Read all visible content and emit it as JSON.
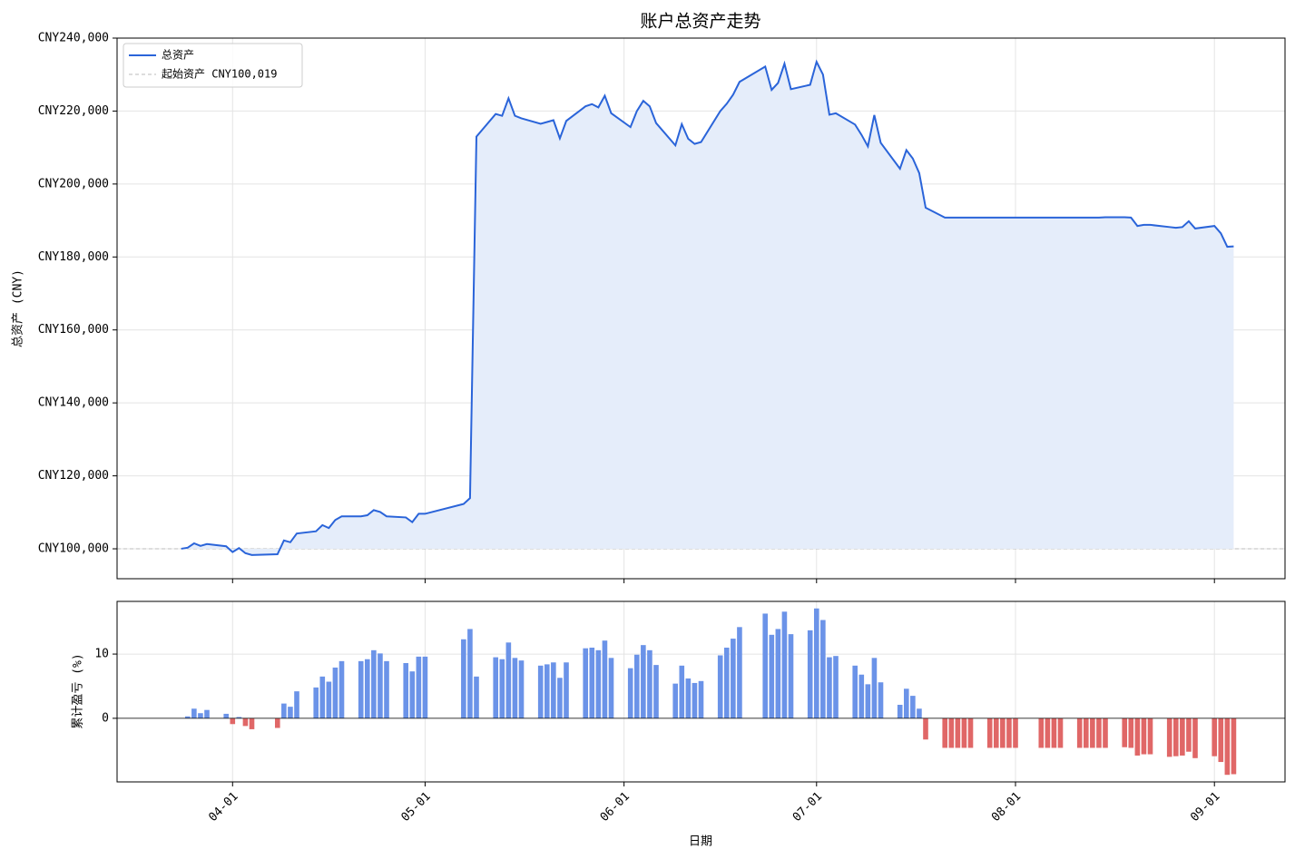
{
  "chart_data": [
    {
      "type": "line",
      "title": "账户总资产走势",
      "ylabel": "总资产 (CNY)",
      "x": [
        "03-24",
        "03-25",
        "03-26",
        "03-27",
        "03-28",
        "03-31",
        "04-01",
        "04-02",
        "04-03",
        "04-04",
        "04-08",
        "04-09",
        "04-10",
        "04-11",
        "04-14",
        "04-15",
        "04-16",
        "04-17",
        "04-18",
        "04-21",
        "04-22",
        "04-23",
        "04-24",
        "04-25",
        "04-28",
        "04-29",
        "04-30",
        "05-01",
        "05-07",
        "05-08",
        "05-09",
        "05-12",
        "05-13",
        "05-14",
        "05-15",
        "05-16",
        "05-19",
        "05-20",
        "05-21",
        "05-22",
        "05-23",
        "05-26",
        "05-27",
        "05-28",
        "05-29",
        "05-30",
        "06-02",
        "06-03",
        "06-04",
        "06-05",
        "06-06",
        "06-09",
        "06-10",
        "06-11",
        "06-12",
        "06-13",
        "06-16",
        "06-17",
        "06-18",
        "06-19",
        "06-23",
        "06-24",
        "06-25",
        "06-26",
        "06-27",
        "06-30",
        "07-01",
        "07-02",
        "07-03",
        "07-04",
        "07-07",
        "07-08",
        "07-09",
        "07-10",
        "07-11",
        "07-14",
        "07-15",
        "07-16",
        "07-17",
        "07-18",
        "07-21",
        "07-22",
        "07-23",
        "07-24",
        "07-25",
        "07-28",
        "07-29",
        "07-30",
        "07-31",
        "08-01",
        "08-05",
        "08-06",
        "08-07",
        "08-08",
        "08-11",
        "08-12",
        "08-13",
        "08-14",
        "08-15",
        "08-18",
        "08-19",
        "08-20",
        "08-21",
        "08-22",
        "08-25",
        "08-26",
        "08-27",
        "08-28",
        "08-29",
        "09-01",
        "09-02",
        "09-03",
        "09-04"
      ],
      "series": [
        {
          "name": "总资产",
          "color": "#2a64d9",
          "fill": "#e5edfa",
          "values": [
            100019,
            100300,
            101500,
            100800,
            101300,
            100700,
            99100,
            100200,
            98800,
            98300,
            98500,
            102300,
            101800,
            104200,
            104800,
            106500,
            105700,
            107900,
            108900,
            108900,
            109200,
            110600,
            110100,
            108900,
            108600,
            107300,
            109600,
            109600,
            112300,
            113900,
            213000,
            219200,
            218700,
            223500,
            218700,
            218000,
            216500,
            217000,
            217500,
            212500,
            217300,
            221300,
            221900,
            221000,
            224200,
            219400,
            215600,
            220000,
            222800,
            221300,
            216700,
            210600,
            216400,
            212400,
            211000,
            211500,
            220000,
            222000,
            224500,
            228000,
            232200,
            225800,
            227700,
            233000,
            226000,
            227200,
            233500,
            230000,
            219000,
            219400,
            216300,
            213500,
            210300,
            218900,
            211300,
            204200,
            209300,
            207000,
            203000,
            193500,
            190800,
            190800,
            190800,
            190800,
            190800,
            190800,
            190800,
            190800,
            190800,
            190800,
            190800,
            190800,
            190800,
            190800,
            190800,
            190800,
            190800,
            190800,
            190900,
            190900,
            190800,
            188500,
            188800,
            188800,
            188200,
            188000,
            188200,
            189800,
            187800,
            188500,
            186500,
            182800,
            182900
          ]
        }
      ],
      "reference": {
        "name": "起始资产 CNY100,019",
        "value": 100019,
        "color": "#bbbbbb"
      },
      "legend": "upper left",
      "xlim": [
        "03-14",
        "09-12"
      ],
      "xticks": [
        "04-01",
        "05-01",
        "06-01",
        "07-01",
        "08-01",
        "09-01"
      ],
      "ylim": [
        91800,
        240000
      ],
      "yticks": [
        {
          "value": 100000,
          "label": "CNY100,000"
        },
        {
          "value": 120000,
          "label": "CNY120,000"
        },
        {
          "value": 140000,
          "label": "CNY140,000"
        },
        {
          "value": 160000,
          "label": "CNY160,000"
        },
        {
          "value": 180000,
          "label": "CNY180,000"
        },
        {
          "value": 200000,
          "label": "CNY200,000"
        },
        {
          "value": 220000,
          "label": "CNY220,000"
        },
        {
          "value": 240000,
          "label": "CNY240,000"
        }
      ],
      "grid": true
    },
    {
      "type": "bar",
      "ylabel": "累计盈亏 (%)",
      "xlabel": "日期",
      "x": [
        "03-24",
        "03-25",
        "03-26",
        "03-27",
        "03-28",
        "03-31",
        "04-01",
        "04-02",
        "04-03",
        "04-04",
        "04-08",
        "04-09",
        "04-10",
        "04-11",
        "04-14",
        "04-15",
        "04-16",
        "04-17",
        "04-18",
        "04-21",
        "04-22",
        "04-23",
        "04-24",
        "04-25",
        "04-28",
        "04-29",
        "04-30",
        "05-01",
        "05-07",
        "05-08",
        "05-09",
        "05-12",
        "05-13",
        "05-14",
        "05-15",
        "05-16",
        "05-19",
        "05-20",
        "05-21",
        "05-22",
        "05-23",
        "05-26",
        "05-27",
        "05-28",
        "05-29",
        "05-30",
        "06-02",
        "06-03",
        "06-04",
        "06-05",
        "06-06",
        "06-09",
        "06-10",
        "06-11",
        "06-12",
        "06-13",
        "06-16",
        "06-17",
        "06-18",
        "06-19",
        "06-23",
        "06-24",
        "06-25",
        "06-26",
        "06-27",
        "06-30",
        "07-01",
        "07-02",
        "07-03",
        "07-04",
        "07-07",
        "07-08",
        "07-09",
        "07-10",
        "07-11",
        "07-14",
        "07-15",
        "07-16",
        "07-17",
        "07-18",
        "07-21",
        "07-22",
        "07-23",
        "07-24",
        "07-25",
        "07-28",
        "07-29",
        "07-30",
        "07-31",
        "08-01",
        "08-05",
        "08-06",
        "08-07",
        "08-08",
        "08-11",
        "08-12",
        "08-13",
        "08-14",
        "08-15",
        "08-18",
        "08-19",
        "08-20",
        "08-21",
        "08-22",
        "08-25",
        "08-26",
        "08-27",
        "08-28",
        "08-29",
        "09-01",
        "09-02",
        "09-03",
        "09-04"
      ],
      "values": [
        0,
        0.3,
        1.5,
        0.8,
        1.3,
        0.7,
        -0.9,
        0.2,
        -1.2,
        -1.7,
        -1.5,
        2.3,
        1.8,
        4.2,
        4.8,
        6.5,
        5.7,
        7.9,
        8.9,
        8.9,
        9.2,
        10.6,
        10.1,
        8.9,
        8.6,
        7.3,
        9.6,
        9.6,
        12.3,
        13.9,
        6.5,
        9.5,
        9.2,
        11.8,
        9.4,
        9.0,
        8.2,
        8.4,
        8.7,
        6.3,
        8.7,
        10.9,
        11.0,
        10.6,
        12.1,
        9.4,
        7.8,
        9.9,
        11.4,
        10.6,
        8.3,
        5.4,
        8.2,
        6.2,
        5.5,
        5.8,
        9.8,
        11.0,
        12.4,
        14.2,
        16.3,
        13.0,
        13.9,
        16.6,
        13.1,
        13.7,
        17.1,
        15.3,
        9.5,
        9.7,
        8.2,
        6.8,
        5.3,
        9.4,
        5.6,
        2.1,
        4.6,
        3.5,
        1.5,
        -3.3,
        -4.6,
        -4.6,
        -4.6,
        -4.6,
        -4.6,
        -4.6,
        -4.6,
        -4.6,
        -4.6,
        -4.6,
        -4.6,
        -4.6,
        -4.6,
        -4.6,
        -4.6,
        -4.6,
        -4.6,
        -4.6,
        -4.6,
        -4.5,
        -4.6,
        -5.8,
        -5.6,
        -5.6,
        -6.0,
        -5.9,
        -5.8,
        -5.2,
        -6.2,
        -5.9,
        -6.8,
        -8.8,
        -8.7
      ],
      "colors": {
        "positive": "#6b93e8",
        "negative": "#e06767"
      },
      "xlim": [
        "03-14",
        "09-12"
      ],
      "xticks": [
        "04-01",
        "05-01",
        "06-01",
        "07-01",
        "08-01",
        "09-01"
      ],
      "ylim": [
        -9.9,
        18.2
      ],
      "yticks": [
        0,
        10
      ],
      "grid": true
    }
  ]
}
